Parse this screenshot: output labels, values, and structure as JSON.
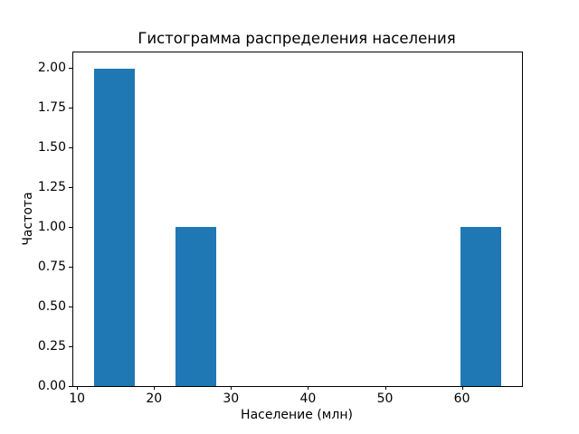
{
  "chart_data": {
    "type": "bar",
    "subtype": "histogram",
    "title": "Гистограмма распределения населения",
    "xlabel": "Население (млн)",
    "ylabel": "Частота",
    "bar_color": "#1f77b4",
    "background_color": "#ffffff",
    "grid": false,
    "legend": null,
    "xlim": [
      9.45,
      67.75
    ],
    "ylim": [
      0,
      2.1
    ],
    "x_ticks": [
      {
        "value": 10,
        "label": "10"
      },
      {
        "value": 20,
        "label": "20"
      },
      {
        "value": 30,
        "label": "30"
      },
      {
        "value": 40,
        "label": "40"
      },
      {
        "value": 50,
        "label": "50"
      },
      {
        "value": 60,
        "label": "60"
      }
    ],
    "y_ticks": [
      {
        "value": 0.0,
        "label": "0.00"
      },
      {
        "value": 0.25,
        "label": "0.25"
      },
      {
        "value": 0.5,
        "label": "0.50"
      },
      {
        "value": 0.75,
        "label": "0.75"
      },
      {
        "value": 1.0,
        "label": "1.00"
      },
      {
        "value": 1.25,
        "label": "1.25"
      },
      {
        "value": 1.5,
        "label": "1.50"
      },
      {
        "value": 1.75,
        "label": "1.75"
      },
      {
        "value": 2.0,
        "label": "2.00"
      }
    ],
    "bars": [
      {
        "x_start": 12.1,
        "x_end": 17.4,
        "frequency": 2
      },
      {
        "x_start": 22.7,
        "x_end": 28.0,
        "frequency": 1
      },
      {
        "x_start": 59.8,
        "x_end": 65.1,
        "frequency": 1
      }
    ]
  }
}
